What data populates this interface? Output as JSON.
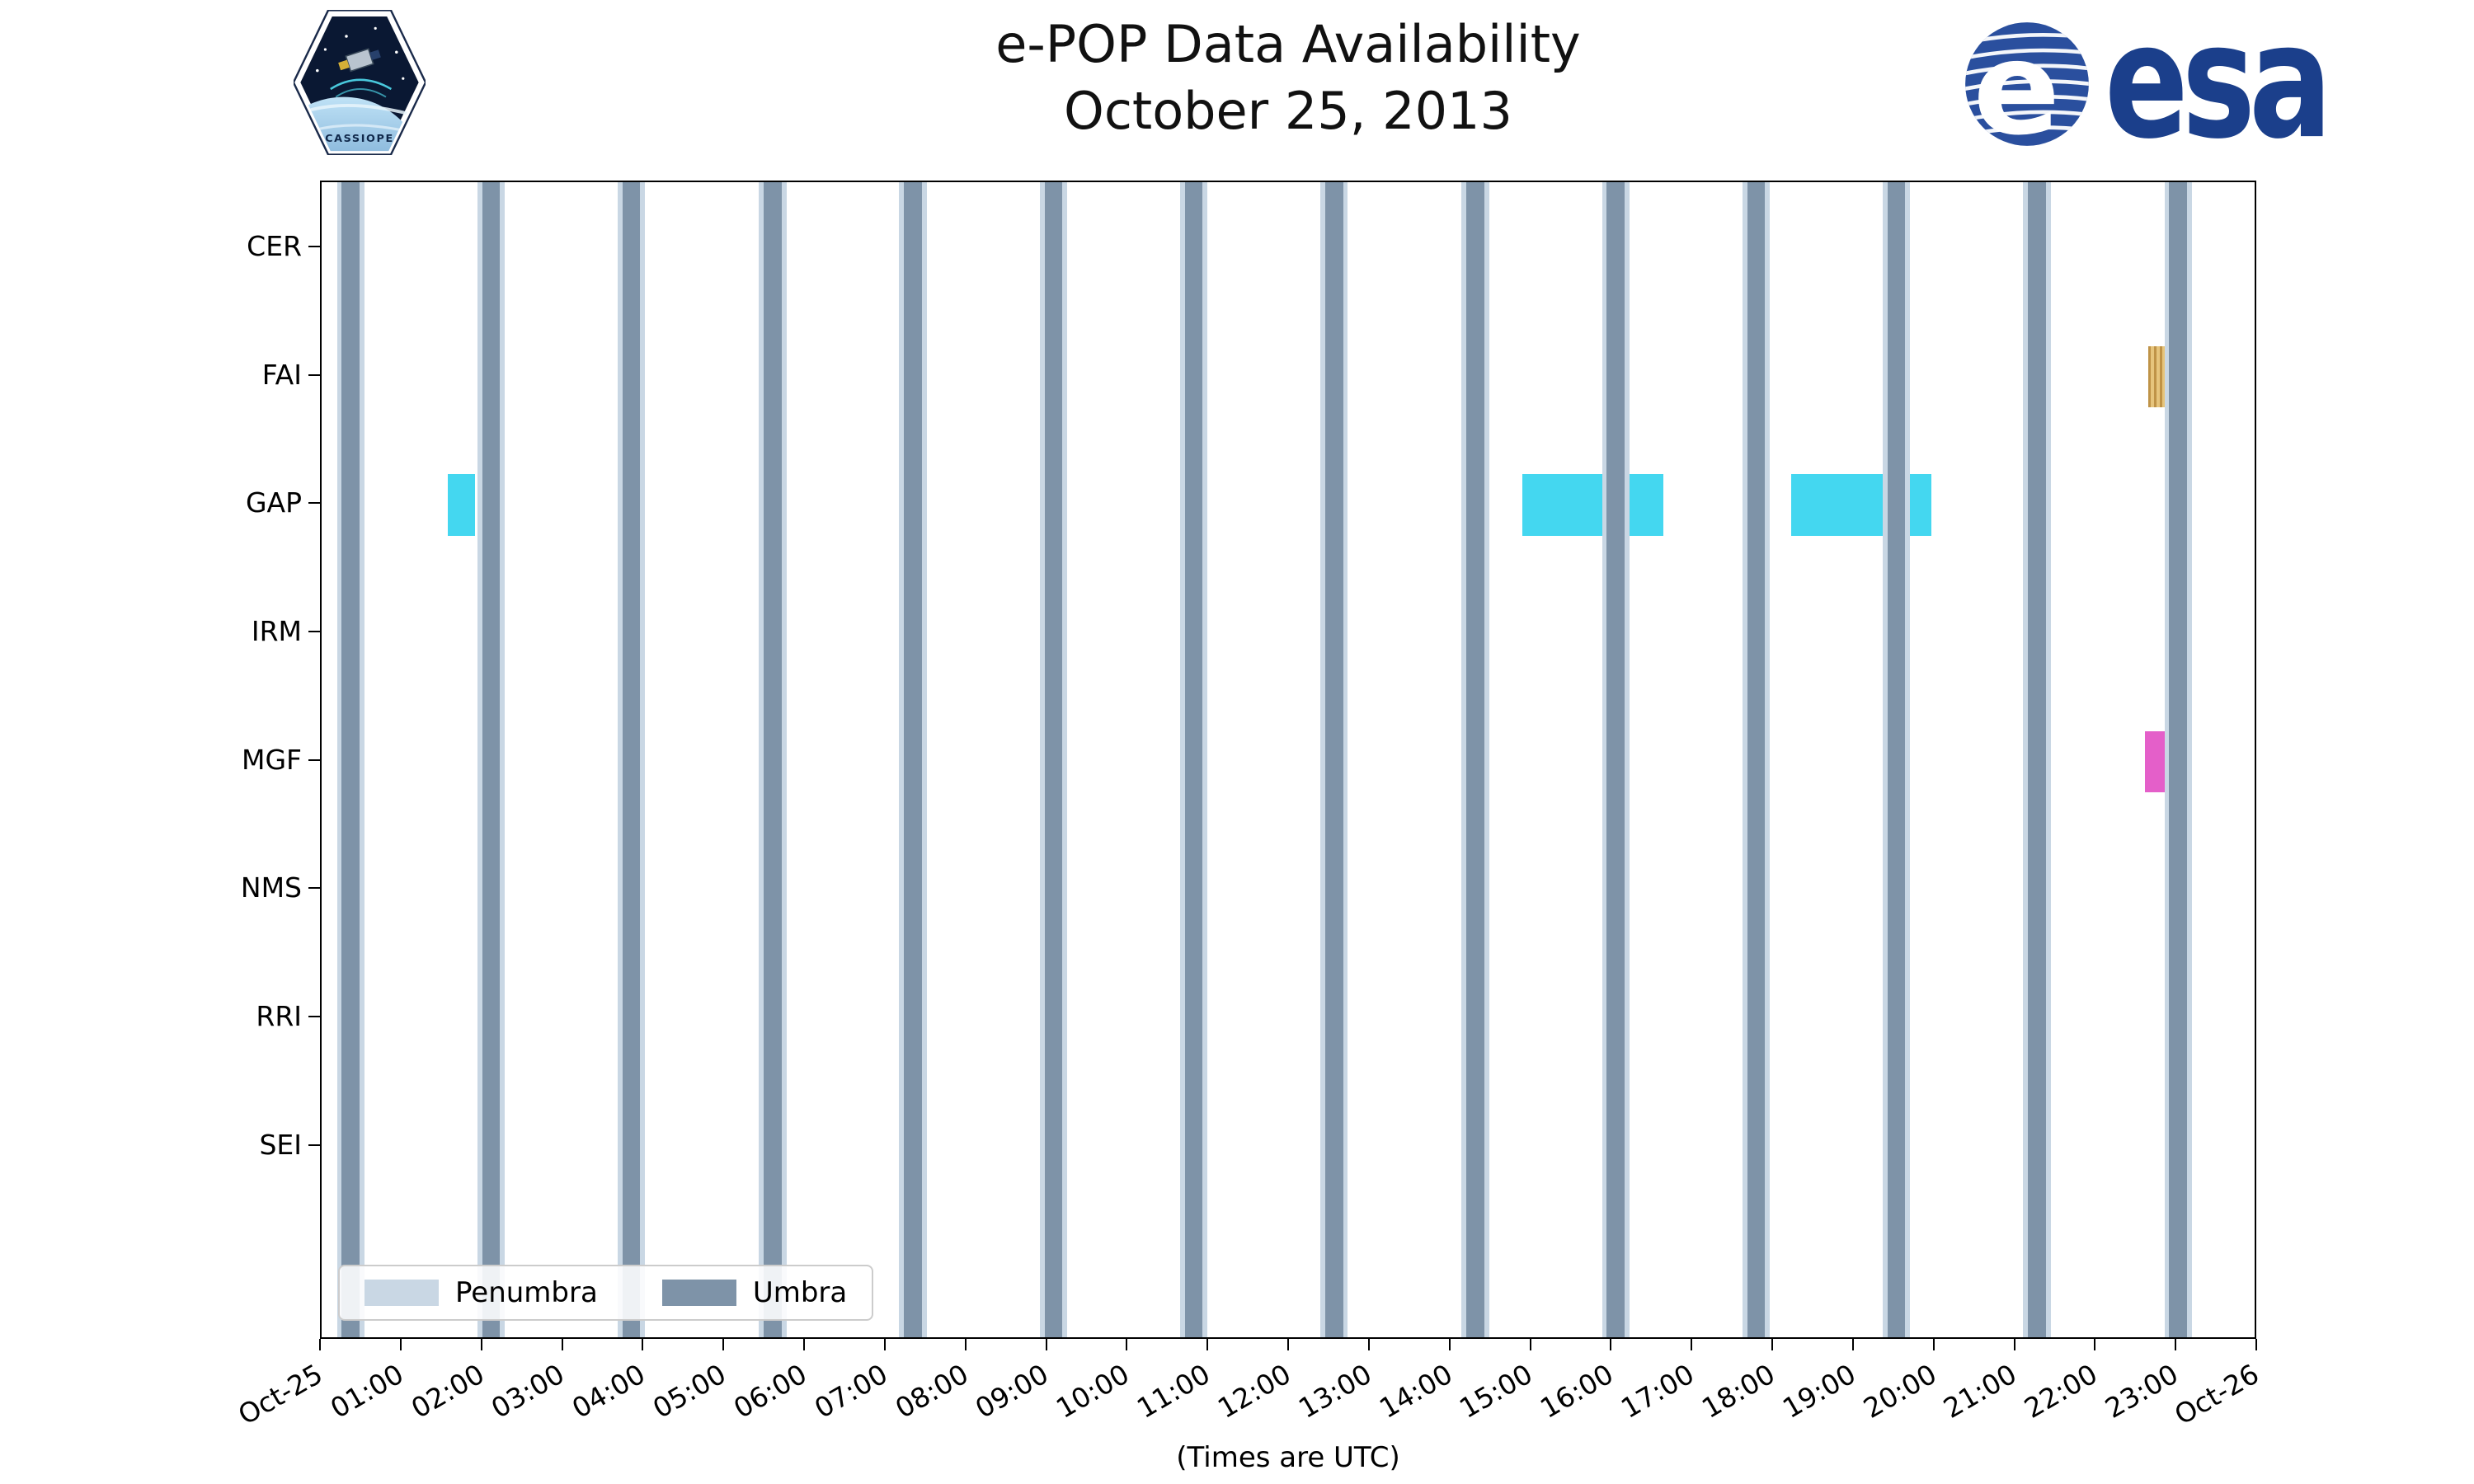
{
  "logos": {
    "esa_text": "esa",
    "cassiope_text": "CASSIOPE"
  },
  "chart_data": {
    "type": "timeline",
    "title": "e-POP Data Availability",
    "subtitle": "October 25, 2013",
    "xlabel": "(Times are UTC)",
    "x_start": 0,
    "x_end": 24,
    "x_ticks": [
      {
        "h": 0,
        "label": "Oct-25"
      },
      {
        "h": 1,
        "label": "01:00"
      },
      {
        "h": 2,
        "label": "02:00"
      },
      {
        "h": 3,
        "label": "03:00"
      },
      {
        "h": 4,
        "label": "04:00"
      },
      {
        "h": 5,
        "label": "05:00"
      },
      {
        "h": 6,
        "label": "06:00"
      },
      {
        "h": 7,
        "label": "07:00"
      },
      {
        "h": 8,
        "label": "08:00"
      },
      {
        "h": 9,
        "label": "09:00"
      },
      {
        "h": 10,
        "label": "10:00"
      },
      {
        "h": 11,
        "label": "11:00"
      },
      {
        "h": 12,
        "label": "12:00"
      },
      {
        "h": 13,
        "label": "13:00"
      },
      {
        "h": 14,
        "label": "14:00"
      },
      {
        "h": 15,
        "label": "15:00"
      },
      {
        "h": 16,
        "label": "16:00"
      },
      {
        "h": 17,
        "label": "17:00"
      },
      {
        "h": 18,
        "label": "18:00"
      },
      {
        "h": 19,
        "label": "19:00"
      },
      {
        "h": 20,
        "label": "20:00"
      },
      {
        "h": 21,
        "label": "21:00"
      },
      {
        "h": 22,
        "label": "22:00"
      },
      {
        "h": 23,
        "label": "23:00"
      },
      {
        "h": 24,
        "label": "Oct-26"
      }
    ],
    "rows": [
      "CER",
      "FAI",
      "GAP",
      "IRM",
      "MGF",
      "NMS",
      "RRI",
      "SEI"
    ],
    "shading": {
      "umbra_centers_utc_hours": [
        0.36,
        2.1,
        3.84,
        5.59,
        7.33,
        9.07,
        10.81,
        12.55,
        14.3,
        16.04,
        17.78,
        19.52,
        21.26,
        23.01
      ],
      "umbra_width_hours": 0.22,
      "penumbra_width_hours": 0.34,
      "umbra_color": "#7e93a8",
      "penumbra_color": "#c9d7e4"
    },
    "intervals": [
      {
        "row": "GAP",
        "start_hours": 1.56,
        "end_hours": 1.9,
        "color": "#44d7f0",
        "hatch": false,
        "hatch_color": ""
      },
      {
        "row": "GAP",
        "start_hours": 14.88,
        "end_hours": 16.63,
        "color": "#44d7f0",
        "hatch": false,
        "hatch_color": ""
      },
      {
        "row": "GAP",
        "start_hours": 18.21,
        "end_hours": 19.95,
        "color": "#44d7f0",
        "hatch": false,
        "hatch_color": ""
      },
      {
        "row": "FAI",
        "start_hours": 22.64,
        "end_hours": 22.89,
        "color": "#e6c47c",
        "hatch": true,
        "hatch_color": "#bf9347"
      },
      {
        "row": "MGF",
        "start_hours": 22.6,
        "end_hours": 22.93,
        "color": "#e45fc9",
        "hatch": false,
        "hatch_color": ""
      }
    ],
    "legend": [
      {
        "label": "Penumbra",
        "color": "#c9d7e4"
      },
      {
        "label": "Umbra",
        "color": "#7e93a8"
      }
    ],
    "axis_color": "#000000"
  }
}
